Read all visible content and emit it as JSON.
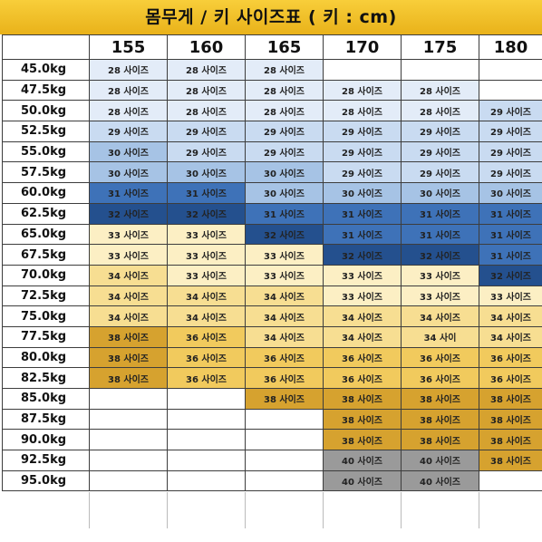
{
  "title": "몸무게 / 키 사이즈표 ( 키 : cm)",
  "heights": [
    "155",
    "160",
    "165",
    "170",
    "175",
    "180"
  ],
  "rows": [
    {
      "weight": "45.0kg",
      "cells": [
        "28 사이즈",
        "28 사이즈",
        "28 사이즈",
        "",
        "",
        ""
      ]
    },
    {
      "weight": "47.5kg",
      "cells": [
        "28 사이즈",
        "28 사이즈",
        "28 사이즈",
        "28 사이즈",
        "28 사이즈",
        ""
      ]
    },
    {
      "weight": "50.0kg",
      "cells": [
        "28 사이즈",
        "28 사이즈",
        "28 사이즈",
        "28 사이즈",
        "28 사이즈",
        "29 사이즈"
      ]
    },
    {
      "weight": "52.5kg",
      "cells": [
        "29 사이즈",
        "29 사이즈",
        "29 사이즈",
        "29 사이즈",
        "29 사이즈",
        "29 사이즈"
      ]
    },
    {
      "weight": "55.0kg",
      "cells": [
        "30 사이즈",
        "29 사이즈",
        "29 사이즈",
        "29 사이즈",
        "29 사이즈",
        "29 사이즈"
      ]
    },
    {
      "weight": "57.5kg",
      "cells": [
        "30 사이즈",
        "30 사이즈",
        "30 사이즈",
        "29 사이즈",
        "29 사이즈",
        "29 사이즈"
      ]
    },
    {
      "weight": "60.0kg",
      "cells": [
        "31 사이즈",
        "31 사이즈",
        "30 사이즈",
        "30 사이즈",
        "30 사이즈",
        "30 사이즈"
      ]
    },
    {
      "weight": "62.5kg",
      "cells": [
        "32 사이즈",
        "32 사이즈",
        "31 사이즈",
        "31 사이즈",
        "31 사이즈",
        "31 사이즈"
      ]
    },
    {
      "weight": "65.0kg",
      "cells": [
        "33 사이즈",
        "33 사이즈",
        "32 사이즈",
        "31 사이즈",
        "31 사이즈",
        "31 사이즈"
      ]
    },
    {
      "weight": "67.5kg",
      "cells": [
        "33 사이즈",
        "33 사이즈",
        "33 사이즈",
        "32 사이즈",
        "32 사이즈",
        "31 사이즈"
      ]
    },
    {
      "weight": "70.0kg",
      "cells": [
        "34 사이즈",
        "33 사이즈",
        "33 사이즈",
        "33 사이즈",
        "33 사이즈",
        "32 사이즈"
      ]
    },
    {
      "weight": "72.5kg",
      "cells": [
        "34 사이즈",
        "34 사이즈",
        "34 사이즈",
        "33 사이즈",
        "33 사이즈",
        "33 사이즈"
      ]
    },
    {
      "weight": "75.0kg",
      "cells": [
        "34 사이즈",
        "34 사이즈",
        "34 사이즈",
        "34 사이즈",
        "34 사이즈",
        "34 사이즈"
      ]
    },
    {
      "weight": "77.5kg",
      "cells": [
        "38 사이즈",
        "36 사이즈",
        "34 사이즈",
        "34 사이즈",
        "34 사이",
        "34 사이즈"
      ]
    },
    {
      "weight": "80.0kg",
      "cells": [
        "38 사이즈",
        "36 사이즈",
        "36 사이즈",
        "36 사이즈",
        "36 사이즈",
        "36 사이즈"
      ]
    },
    {
      "weight": "82.5kg",
      "cells": [
        "38 사이즈",
        "36 사이즈",
        "36 사이즈",
        "36 사이즈",
        "36 사이즈",
        "36 사이즈"
      ]
    },
    {
      "weight": "85.0kg",
      "cells": [
        "",
        "",
        "38 사이즈",
        "38 사이즈",
        "38 사이즈",
        "38 사이즈"
      ]
    },
    {
      "weight": "87.5kg",
      "cells": [
        "",
        "",
        "",
        "38 사이즈",
        "38 사이즈",
        "38 사이즈"
      ]
    },
    {
      "weight": "90.0kg",
      "cells": [
        "",
        "",
        "",
        "38 사이즈",
        "38 사이즈",
        "38 사이즈"
      ]
    },
    {
      "weight": "92.5kg",
      "cells": [
        "",
        "",
        "",
        "40 사이즈",
        "40 사이즈",
        "38 사이즈"
      ]
    },
    {
      "weight": "95.0kg",
      "cells": [
        "",
        "",
        "",
        "40 사이즈",
        "40 사이즈",
        ""
      ]
    }
  ]
}
